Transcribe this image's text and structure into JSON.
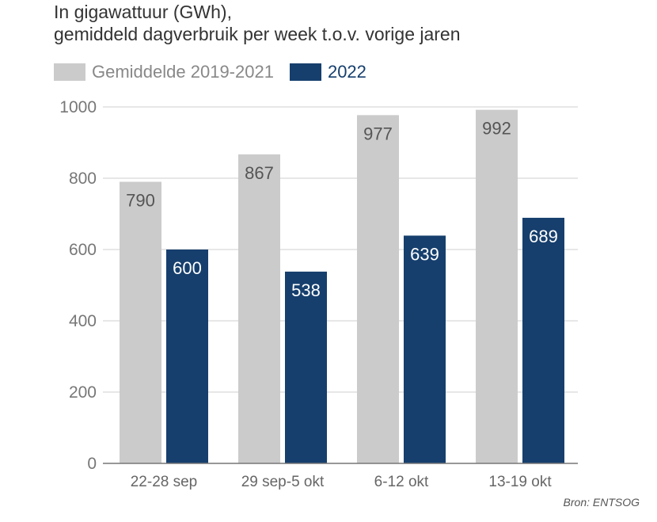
{
  "title_lines": [
    "In gigawattuur (GWh),",
    "gemiddeld dagverbruik per week t.o.v. vorige jaren"
  ],
  "source": "Bron: ENTSOG",
  "colors": {
    "avg": "#cccbcb",
    "y2022": "#163f6d",
    "grid": "#cfcfcf",
    "axis": "#777777",
    "label_dark": "#555555",
    "label_light": "#ffffff",
    "tick": "#777777"
  },
  "chart_data": {
    "type": "bar",
    "categories": [
      "22-28 sep",
      "29 sep-5 okt",
      "6-12 okt",
      "13-19 okt"
    ],
    "series": [
      {
        "name": "Gemiddelde 2019-2021",
        "values": [
          790,
          867,
          977,
          992
        ]
      },
      {
        "name": "2022",
        "values": [
          600,
          538,
          639,
          689
        ]
      }
    ],
    "ylim": [
      0,
      1000
    ],
    "yticks": [
      0,
      200,
      400,
      600,
      800,
      1000
    ],
    "grid": true,
    "legend": "top-left",
    "data_labels": true
  }
}
